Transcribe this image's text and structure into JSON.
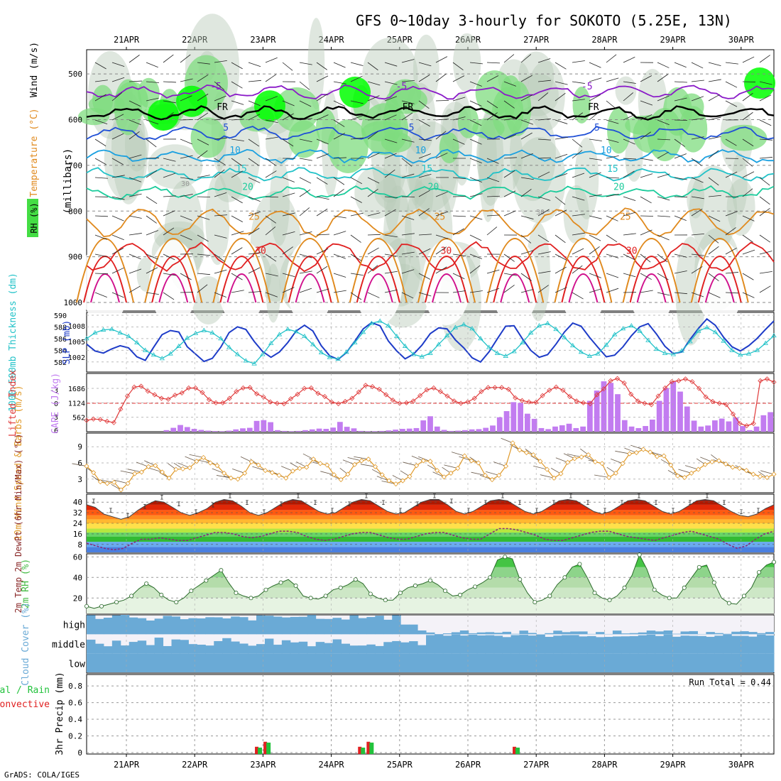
{
  "title": "GFS 0~10day 3-hourly for SOKOTO (5.25E, 13N)",
  "credit": "GrADS: COLA/IGES",
  "dates": [
    "21APR",
    "22APR",
    "23APR",
    "24APR",
    "25APR",
    "26APR",
    "27APR",
    "28APR",
    "29APR",
    "30APR"
  ],
  "colors": {
    "rh_green": "#7fdc7f",
    "rh_bright": "#00ff00",
    "rh_grey": "#b8c9b8",
    "temp_orange": "#e08a1e",
    "temp_red": "#e02020",
    "temp_magenta": "#d0108c",
    "teal": "#1ccc9c",
    "sky": "#1aa0e0",
    "blue": "#1f4fd6",
    "purple": "#8a1ac8",
    "cyan": "#22c2c8",
    "navy": "#1e3cc8",
    "cape": "#c27cf0",
    "lifted": "#e03a3a",
    "wind": "#e09a2a",
    "cloud": "#6aaad6",
    "cloud_bg": "#f4f2f8",
    "rain": "#22c23c",
    "conv": "#e02020",
    "rh2m": "#44bb44"
  },
  "chart_data": [
    {
      "type": "heatmap",
      "panel": "upper-air",
      "ylabel_parts": [
        "RH (%)",
        "Temperature (°C)",
        "Wind (m/s)"
      ],
      "ylabel_units": "(millibars)",
      "yticks": [
        500,
        600,
        700,
        800,
        900,
        1000
      ],
      "ylim": [
        450,
        1000
      ],
      "contours": [
        {
          "label": "-5",
          "level_mb": 540,
          "color": "purple"
        },
        {
          "label": "FR",
          "level_mb": 585,
          "color": "black"
        },
        {
          "label": "5",
          "level_mb": 630,
          "color": "blue"
        },
        {
          "label": "10",
          "level_mb": 680,
          "color": "sky"
        },
        {
          "label": "15",
          "level_mb": 720,
          "color": "cyan"
        },
        {
          "label": "20",
          "level_mb": 760,
          "color": "teal"
        },
        {
          "label": "25",
          "level_mb": 825,
          "color": "temp_orange"
        },
        {
          "label": "30",
          "level_mb": 900,
          "color": "temp_red"
        }
      ],
      "isotach_labels": [
        "30",
        "30",
        "30"
      ]
    },
    {
      "type": "line",
      "panel": "thickness-slp",
      "ylabel_left": "1000-500mb Thickness (dm)",
      "ylabel_right": "SLP (mb)",
      "left_ticks": [
        582,
        584,
        586,
        588,
        590
      ],
      "right_ticks": [
        1002,
        1005,
        1008
      ],
      "series": [
        {
          "name": "SLP",
          "color": "navy",
          "values": [
            1004.5,
            1003.2,
            1002.8,
            1003.6,
            1004.2,
            1003.8,
            1002.1,
            1001.4,
            1003.9,
            1006.3,
            1007.1,
            1006.8,
            1004.0,
            1002.6,
            1001.2,
            1001.8,
            1003.9,
            1006.7,
            1007.8,
            1007.3,
            1005.0,
            1003.1,
            1002.0,
            1003.0,
            1004.8,
            1007.0,
            1008.1,
            1007.0,
            1004.2,
            1002.3,
            1001.6,
            1002.9,
            1005.1,
            1007.4,
            1008.6,
            1008.0,
            1005.1,
            1003.2,
            1001.7,
            1002.6,
            1004.3,
            1006.5,
            1007.6,
            1007.4,
            1005.3,
            1003.8,
            1001.9,
            1001.1,
            1003.0,
            1005.5,
            1007.9,
            1008.0,
            1005.5,
            1003.3,
            1002.0,
            1002.5,
            1004.5,
            1006.8,
            1008.5,
            1007.9,
            1005.8,
            1003.9,
            1002.1,
            1002.4,
            1004.0,
            1006.1,
            1007.8,
            1008.4,
            1006.4,
            1004.1,
            1002.7,
            1003.0,
            1005.4,
            1007.5,
            1009.3,
            1008.1,
            1005.8,
            1004.0,
            1003.2,
            1004.2,
            1005.6,
            1007.3,
            1008.9
          ]
        },
        {
          "name": "Thickness",
          "color": "cyan",
          "values": [
            586.0,
            587.0,
            587.5,
            587.6,
            587.0,
            586.4,
            585.3,
            584.0,
            583.2,
            582.6,
            583.4,
            584.7,
            586.1,
            586.9,
            587.4,
            587.0,
            586.0,
            584.5,
            583.3,
            582.2,
            581.7,
            583.3,
            585.2,
            586.7,
            587.6,
            587.2,
            586.4,
            585.0,
            583.6,
            582.8,
            582.5,
            583.7,
            585.3,
            587.1,
            588.6,
            589.0,
            588.2,
            586.4,
            584.7,
            583.3,
            582.9,
            583.5,
            585.0,
            586.5,
            587.9,
            588.4,
            587.7,
            586.0,
            584.5,
            583.5,
            583.0,
            583.8,
            585.3,
            587.0,
            588.2,
            588.6,
            587.6,
            586.2,
            584.8,
            583.7,
            583.0,
            583.4,
            584.9,
            586.7,
            587.7,
            588.2,
            587.3,
            585.7,
            584.2,
            583.5,
            583.3,
            583.9,
            585.5,
            587.3,
            587.9,
            587.1,
            585.6,
            584.0,
            583.2,
            583.4,
            584.0,
            585.2,
            586.5
          ]
        }
      ]
    },
    {
      "type": "bar",
      "panel": "cape-lifted",
      "ylabel_left": "Lifted Index",
      "ylabel_right": "CAPE (J/kg)",
      "left_ticks": [
        -3,
        0,
        3,
        6
      ],
      "right_ticks": [
        562,
        1124,
        1686
      ],
      "series": [
        {
          "name": "CAPE",
          "color": "cape",
          "values": [
            0,
            0,
            0,
            0,
            0,
            0,
            0,
            0,
            0,
            0,
            0,
            60,
            150,
            260,
            180,
            110,
            70,
            40,
            25,
            20,
            40,
            90,
            130,
            150,
            420,
            450,
            370,
            60,
            30,
            20,
            30,
            60,
            90,
            120,
            110,
            160,
            380,
            190,
            130,
            30,
            20,
            20,
            30,
            50,
            80,
            110,
            120,
            140,
            440,
            600,
            200,
            70,
            30,
            40,
            60,
            90,
            100,
            150,
            240,
            560,
            800,
            1150,
            1120,
            700,
            500,
            140,
            100,
            200,
            250,
            310,
            140,
            200,
            1200,
            1600,
            1960,
            1900,
            1460,
            450,
            200,
            140,
            220,
            470,
            1200,
            1700,
            1950,
            1560,
            980,
            430,
            200,
            240,
            440,
            510,
            400,
            550,
            220,
            60,
            200,
            640,
            760
          ]
        },
        {
          "name": "Lifted Index",
          "color": "lifted",
          "values": [
            3.8,
            3.5,
            3.6,
            4.0,
            4.3,
            1.3,
            -1.6,
            -3.6,
            -3.8,
            -2.7,
            -1.9,
            -1.1,
            -0.9,
            -1.8,
            -2.3,
            -3.4,
            -3.4,
            -2.4,
            -0.8,
            -0.1,
            -0.1,
            -1.1,
            -2.6,
            -3.4,
            -3.5,
            -2.1,
            -1.4,
            -0.3,
            0.0,
            0.1,
            -1.0,
            -2.0,
            -3.3,
            -3.4,
            -2.2,
            -1.5,
            -0.3,
            0.1,
            -0.4,
            -1.1,
            -2.5,
            -4.0,
            -3.7,
            -3.1,
            -1.9,
            -0.7,
            0.0,
            -0.1,
            -0.5,
            -1.7,
            -3.0,
            -3.4,
            -2.6,
            -1.6,
            -0.5,
            0.0,
            -0.3,
            -1.1,
            -2.6,
            -3.5,
            -3.5,
            -3.5,
            -3.1,
            -1.2,
            -0.6,
            -0.3,
            -0.2,
            -1.7,
            -2.9,
            -3.6,
            -2.9,
            -1.5,
            -0.5,
            -0.1,
            0.1,
            -1.9,
            -3.2,
            -5.0,
            -5.5,
            -4.5,
            -2.0,
            -0.5,
            0.0,
            0.3,
            -1.6,
            -3.4,
            -4.8,
            -5.0,
            -5.4,
            -4.8,
            -3.3,
            -1.4,
            -0.4,
            0.0,
            0.3,
            2.4,
            4.5,
            5.0,
            4.5,
            -5.0,
            -5.4,
            -4.7
          ]
        }
      ]
    },
    {
      "type": "line",
      "panel": "wind10m",
      "ylabel": "10m Wind Speed & Barbs (m/s)",
      "yticks": [
        3,
        6,
        9
      ],
      "series": [
        {
          "name": "10m Wind Speed",
          "color": "wind",
          "values": [
            5.4,
            4.2,
            2.5,
            2.2,
            2.4,
            1.0,
            2.2,
            4.0,
            4.3,
            5.3,
            5.5,
            4.3,
            3.2,
            4.8,
            4.9,
            5.1,
            6.3,
            7.0,
            6.0,
            5.5,
            4.1,
            3.2,
            3.0,
            4.1,
            6.2,
            5.6,
            4.6,
            4.2,
            3.7,
            3.2,
            4.5,
            5.0,
            5.2,
            6.7,
            5.9,
            5.6,
            3.8,
            2.9,
            3.9,
            5.7,
            6.4,
            6.7,
            5.3,
            3.8,
            2.7,
            2.1,
            2.7,
            3.5,
            5.5,
            6.4,
            6.3,
            4.6,
            3.4,
            4.1,
            5.0,
            7.3,
            6.4,
            6.0,
            3.7,
            2.9,
            3.7,
            5.4,
            9.7,
            8.4,
            7.9,
            7.5,
            6.3,
            4.8,
            3.2,
            4.0,
            6.1,
            6.8,
            7.1,
            7.5,
            6.2,
            5.9,
            3.3,
            4.1,
            5.9,
            7.7,
            7.9,
            8.5,
            8.0,
            7.2,
            7.3,
            5.6,
            3.6,
            3.3,
            4.1,
            4.8,
            5.7,
            6.2,
            6.4,
            5.8,
            5.2,
            5.0,
            4.6,
            3.9,
            3.5,
            3.3,
            3.9
          ]
        }
      ]
    },
    {
      "type": "area",
      "panel": "temp2m",
      "ylabel": "2m Temp 2m DewPt (6hr Min/Max) (°C)",
      "yticks": [
        8,
        16,
        24,
        32,
        40
      ],
      "series": [
        {
          "name": "2m Temp",
          "color": "temp_red",
          "values": [
            38,
            36,
            31,
            29,
            27,
            29,
            34,
            38,
            41,
            40,
            36,
            32,
            30,
            32,
            35,
            40,
            42,
            41,
            37,
            32,
            30,
            32,
            36,
            40,
            42,
            41,
            37,
            33,
            31,
            32,
            36,
            40,
            42,
            41,
            37,
            33,
            31,
            32,
            36,
            40,
            42,
            42,
            38,
            33,
            31,
            33,
            37,
            41,
            42,
            41,
            37,
            33,
            31,
            33,
            37,
            41,
            42,
            41,
            37,
            33,
            31,
            33,
            37,
            41,
            42,
            41,
            37,
            33,
            31,
            33,
            37,
            41,
            42,
            41,
            37,
            33,
            30,
            29,
            31,
            35,
            38
          ]
        },
        {
          "name": "2m DewPt",
          "color": "purple",
          "values": [
            9,
            7,
            5,
            4,
            5,
            9,
            12,
            12,
            13,
            12,
            11,
            11,
            13,
            15,
            17,
            17,
            16,
            14,
            13,
            14,
            16,
            18,
            18,
            17,
            14,
            12,
            11,
            12,
            14,
            16,
            17,
            17,
            15,
            13,
            12,
            12,
            14,
            16,
            17,
            17,
            15,
            13,
            12,
            12,
            16,
            20,
            20,
            19,
            17,
            15,
            12,
            11,
            11,
            13,
            15,
            17,
            18,
            18,
            16,
            14,
            13,
            12,
            11,
            13,
            15,
            17,
            18,
            16,
            14,
            12,
            8,
            5,
            7,
            12,
            16,
            18
          ]
        }
      ]
    },
    {
      "type": "area",
      "panel": "rh2m",
      "ylabel": "2m RH (%)",
      "yticks": [
        20,
        40,
        60
      ],
      "series": [
        {
          "name": "2m RH",
          "color": "rh2m",
          "values": [
            12,
            10,
            12,
            14,
            16,
            18,
            22,
            29,
            34,
            30,
            23,
            18,
            16,
            20,
            27,
            32,
            37,
            42,
            47,
            35,
            25,
            22,
            20,
            22,
            28,
            32,
            35,
            38,
            32,
            22,
            20,
            19,
            22,
            28,
            30,
            33,
            38,
            34,
            24,
            20,
            18,
            18,
            25,
            30,
            32,
            34,
            37,
            33,
            27,
            22,
            23,
            28,
            31,
            35,
            40,
            57,
            60,
            58,
            38,
            25,
            16,
            18,
            22,
            33,
            40,
            50,
            53,
            40,
            25,
            20,
            18,
            22,
            30,
            42,
            62,
            48,
            28,
            23,
            20,
            20,
            30,
            40,
            50,
            52,
            35,
            20,
            15,
            14,
            22,
            30,
            45,
            52,
            55
          ]
        }
      ]
    },
    {
      "type": "heatmap",
      "panel": "cloud",
      "ylabel": "Cloud Cover (%)",
      "layers": [
        "high",
        "middle",
        "low"
      ]
    },
    {
      "type": "bar",
      "panel": "precip",
      "ylabel_left": "Total / Rain",
      "ylabel_right": "Convective",
      "ylabel": "3hr Precip (mm)",
      "yticks": [
        0,
        0.2,
        0.4,
        0.6,
        0.8
      ],
      "annotation": "Run Total = 0.44",
      "bars": [
        {
          "x": 10.5,
          "total": 0.06,
          "conv": 0.07
        },
        {
          "x": 11.5,
          "total": 0.12,
          "conv": 0.13
        },
        {
          "x": 22.5,
          "total": 0.06,
          "conv": 0.07
        },
        {
          "x": 23.5,
          "total": 0.12,
          "conv": 0.13
        },
        {
          "x": 40.5,
          "total": 0.06,
          "conv": 0.07
        }
      ]
    }
  ]
}
